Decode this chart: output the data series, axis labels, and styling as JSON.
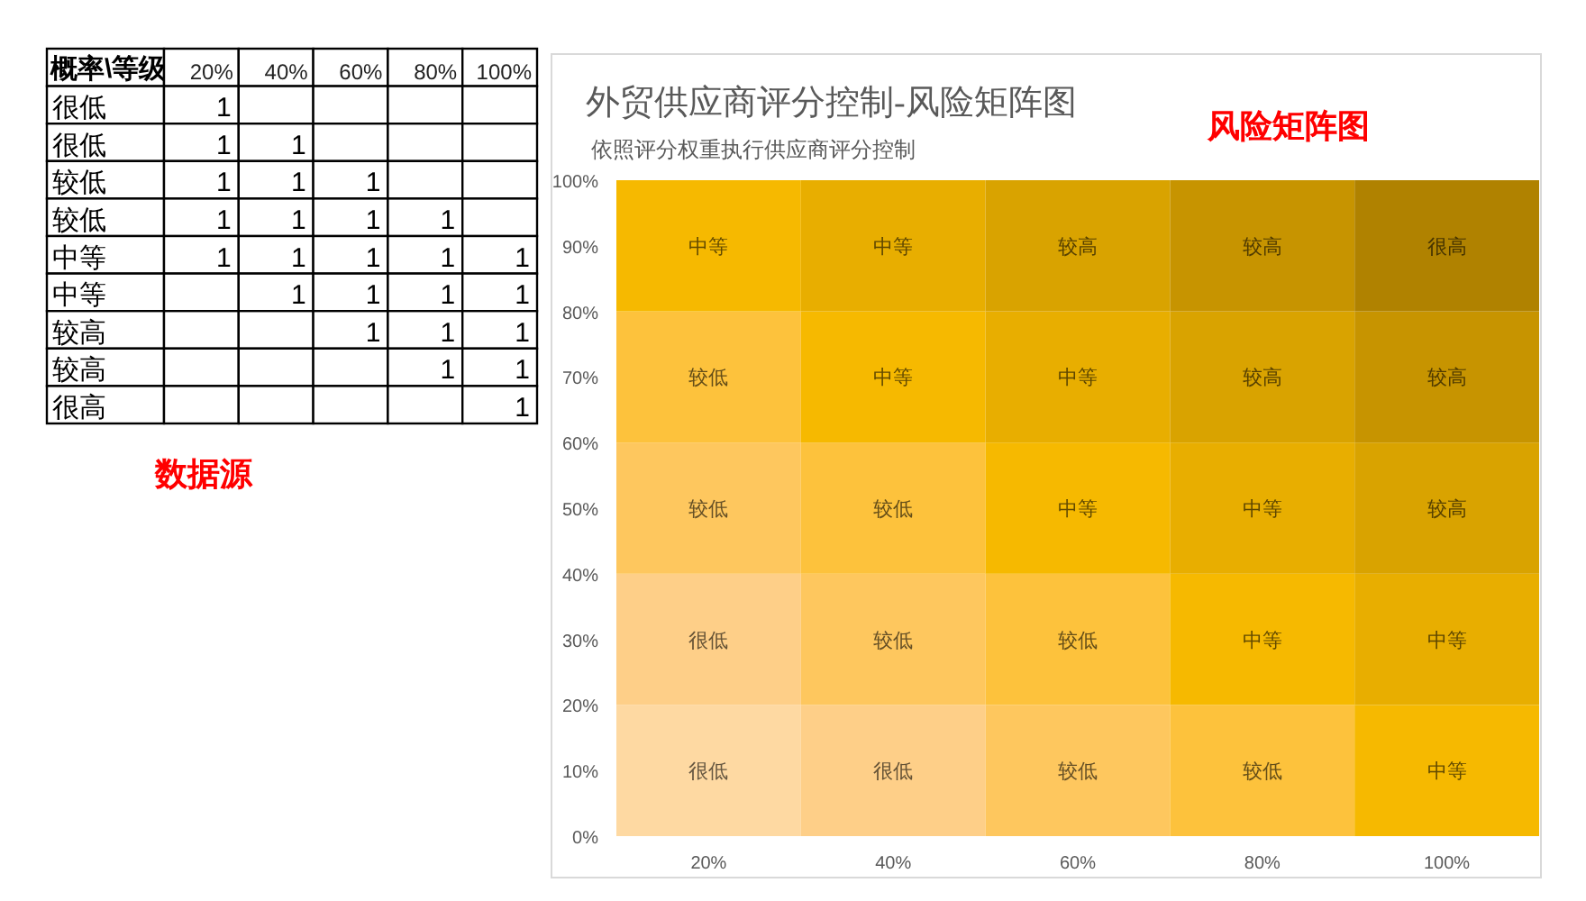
{
  "chart_data": [
    {
      "type": "heatmap",
      "ylabel": "概率\\等级",
      "categories": [
        "20%",
        "40%",
        "60%",
        "80%",
        "100%"
      ],
      "y_categories": [
        "很低",
        "很低",
        "较低",
        "较低",
        "中等",
        "中等",
        "较高",
        "较高",
        "很高"
      ],
      "cells": [
        [
          1,
          null,
          null,
          null,
          null
        ],
        [
          1,
          1,
          null,
          null,
          null
        ],
        [
          1,
          1,
          1,
          null,
          null
        ],
        [
          1,
          1,
          1,
          1,
          null
        ],
        [
          1,
          1,
          1,
          1,
          1
        ],
        [
          null,
          1,
          1,
          1,
          1
        ],
        [
          null,
          null,
          1,
          1,
          1
        ],
        [
          null,
          null,
          null,
          1,
          1
        ],
        [
          null,
          null,
          null,
          null,
          1
        ]
      ],
      "data_labels": true,
      "annotations": [
        "数据源"
      ]
    },
    {
      "type": "bar",
      "title": "外贸供应商评分控制-风险矩阵图",
      "subtitle": "依照评分权重执行供应商评分控制",
      "annotations": [
        "风险矩阵图"
      ],
      "stacked": true,
      "categories": [
        "20%",
        "40%",
        "60%",
        "80%",
        "100%"
      ],
      "series": [
        {
          "name": "很低",
          "color": "#fed9a2",
          "values": [
            20,
            null,
            null,
            null,
            null
          ]
        },
        {
          "name": "很低",
          "color": "#fecf88",
          "values": [
            20,
            20,
            null,
            null,
            null
          ]
        },
        {
          "name": "较低",
          "color": "#fec75e",
          "values": [
            20,
            20,
            20,
            null,
            null
          ]
        },
        {
          "name": "较低",
          "color": "#fdc23c",
          "values": [
            20,
            20,
            20,
            20,
            null
          ]
        },
        {
          "name": "中等",
          "color": "#f6b900",
          "values": [
            20,
            20,
            20,
            20,
            20
          ]
        },
        {
          "name": "中等",
          "color": "#e8ae00",
          "values": [
            null,
            20,
            20,
            20,
            20
          ]
        },
        {
          "name": "较高",
          "color": "#d9a300",
          "values": [
            null,
            null,
            20,
            20,
            20
          ]
        },
        {
          "name": "较高",
          "color": "#c79400",
          "values": [
            null,
            null,
            null,
            20,
            20
          ]
        },
        {
          "name": "很高",
          "color": "#b08200",
          "values": [
            null,
            null,
            null,
            null,
            20
          ]
        }
      ],
      "ylim": [
        0,
        100
      ],
      "yticks": [
        {
          "value": 0,
          "label": "0%"
        },
        {
          "value": 10,
          "label": "10%"
        },
        {
          "value": 20,
          "label": "20%"
        },
        {
          "value": 30,
          "label": "30%"
        },
        {
          "value": 40,
          "label": "40%"
        },
        {
          "value": 50,
          "label": "50%"
        },
        {
          "value": 60,
          "label": "60%"
        },
        {
          "value": 70,
          "label": "70%"
        },
        {
          "value": 80,
          "label": "80%"
        },
        {
          "value": 90,
          "label": "90%"
        },
        {
          "value": 100,
          "label": "100%"
        }
      ]
    }
  ]
}
